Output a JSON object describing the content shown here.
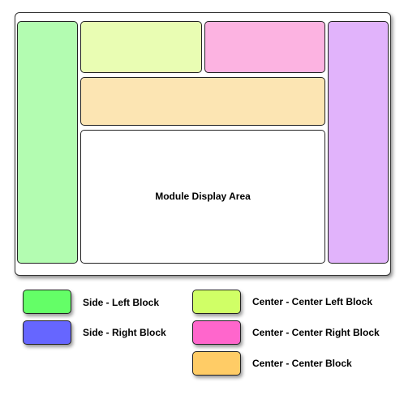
{
  "layout_diagram": {
    "display_area_label": "Module Display Area"
  },
  "colors": {
    "frame_side_left": "#b3fcb1",
    "frame_center_left": "#e9fdb3",
    "frame_center_right": "#fcb3e1",
    "frame_center": "#fce5b3",
    "frame_side_right": "#e1b3fb",
    "legend_side_left": "#64fe67",
    "legend_side_right": "#6666ff",
    "legend_center_left": "#d0ff66",
    "legend_center_right": "#ff66cc",
    "legend_center": "#ffcc66"
  },
  "legend": {
    "side_left": "Side - Left Block",
    "side_right": "Side - Right Block",
    "center_left": "Center - Center Left Block",
    "center_right": "Center - Center Right Block",
    "center": "Center - Center Block"
  }
}
